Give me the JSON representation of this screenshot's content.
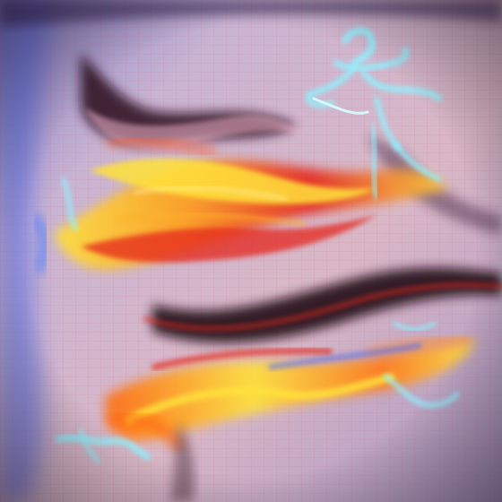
{
  "artwork": {
    "kind": "abstract digital painting",
    "palette": {
      "background_lilac": "#c8b4d2",
      "background_pink": "#d9b8c6",
      "shadow_blue": "#6b5e9c",
      "dark_fold": "#2a0f1e",
      "flame_yellow": "#ffe23a",
      "flame_orange": "#ff7a18",
      "flame_red": "#e5261c",
      "cyan_glow": "#8ff3ff",
      "cool_blue": "#3a5cff",
      "grid_line": "#c36a86"
    },
    "layers": [
      "lilac-fabric-background",
      "dark-upper-fold",
      "dark-lower-fold",
      "upper-flame-wave",
      "lower-flame-wave",
      "cyan-glow-figure-top-right",
      "cyan-glow-bottom-left",
      "grid-texture"
    ]
  }
}
